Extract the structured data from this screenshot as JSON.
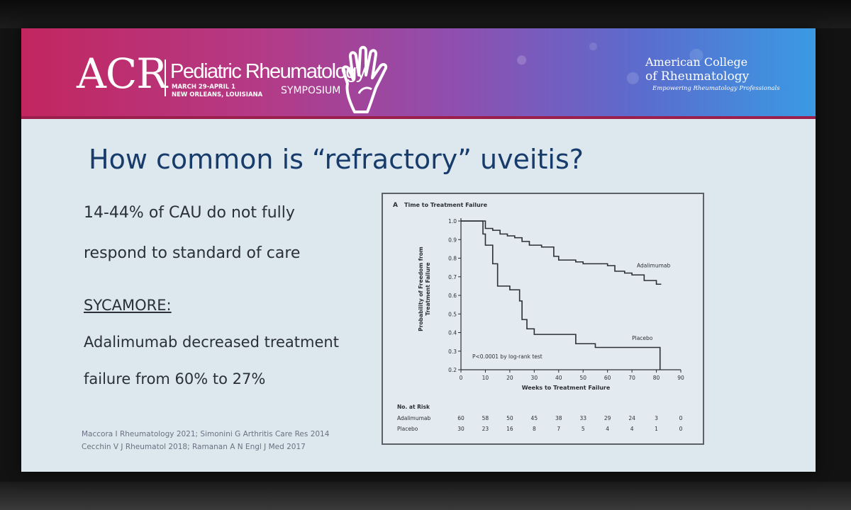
{
  "banner": {
    "acr_logo": "ACR",
    "symposium_title": "Pediatric Rheumatology",
    "symposium_date": "MARCH 29-APRIL 1",
    "symposium_location": "NEW ORLEANS, LOUISIANA",
    "symposium_word": "SYMPOSIUM",
    "college_line1": "American College",
    "college_line2": "of Rheumatology",
    "college_tagline": "Empowering Rheumatology Professionals"
  },
  "slide": {
    "title": "How common is “refractory” uveitis?",
    "bullet1_line1": "14-44% of CAU do not fully",
    "bullet1_line2": "respond to standard of care",
    "trial_name": "SYCAMORE:",
    "bullet2_line1": "Adalimumab decreased treatment",
    "bullet2_line2": "failure from 60% to 27%",
    "citation1": "Maccora I Rheumatology 2021; Simonini G Arthritis Care Res 2014",
    "citation2": "Cecchin V J Rheumatol 2018; Ramanan A N Engl J Med 2017"
  },
  "chart_data": {
    "type": "line",
    "panel_label": "A",
    "title": "Time to Treatment Failure",
    "xlabel": "Weeks to Treatment Failure",
    "ylabel_line1": "Probability of Freedom from",
    "ylabel_line2": "Treatment Failure",
    "xlim": [
      0,
      90
    ],
    "ylim": [
      0.2,
      1.0
    ],
    "x_ticks": [
      0,
      10,
      20,
      30,
      40,
      50,
      60,
      70,
      80,
      90
    ],
    "y_ticks": [
      "0.2",
      "0.3",
      "0.4",
      "0.5",
      "0.6",
      "0.7",
      "0.8",
      "0.9",
      "1.0"
    ],
    "annotation": "P<0.0001 by log-rank test",
    "series": [
      {
        "name": "Adalimumab",
        "x": [
          0,
          8,
          10,
          13,
          16,
          19,
          22,
          25,
          28,
          33,
          38,
          40,
          47,
          50,
          55,
          60,
          63,
          67,
          70,
          75,
          80,
          82
        ],
        "y": [
          1.0,
          1.0,
          0.96,
          0.95,
          0.93,
          0.92,
          0.91,
          0.89,
          0.87,
          0.86,
          0.81,
          0.79,
          0.78,
          0.77,
          0.77,
          0.76,
          0.73,
          0.72,
          0.71,
          0.68,
          0.66,
          0.66
        ]
      },
      {
        "name": "Placebo",
        "x": [
          0,
          8,
          9,
          10,
          13,
          15,
          20,
          24,
          25,
          27,
          30,
          38,
          47,
          55,
          60,
          70,
          76,
          81,
          81.5
        ],
        "y": [
          1.0,
          1.0,
          0.93,
          0.87,
          0.77,
          0.65,
          0.63,
          0.57,
          0.47,
          0.42,
          0.39,
          0.39,
          0.34,
          0.32,
          0.32,
          0.32,
          0.32,
          0.32,
          0.2
        ]
      }
    ],
    "risk_table": {
      "header": "No. at Risk",
      "rows": [
        {
          "label": "Adalimumab",
          "values": [
            "60",
            "58",
            "50",
            "45",
            "38",
            "33",
            "29",
            "24",
            "3",
            "0"
          ]
        },
        {
          "label": "Placebo",
          "values": [
            "30",
            "23",
            "16",
            "8",
            "7",
            "5",
            "4",
            "4",
            "1",
            "0"
          ]
        }
      ]
    }
  }
}
